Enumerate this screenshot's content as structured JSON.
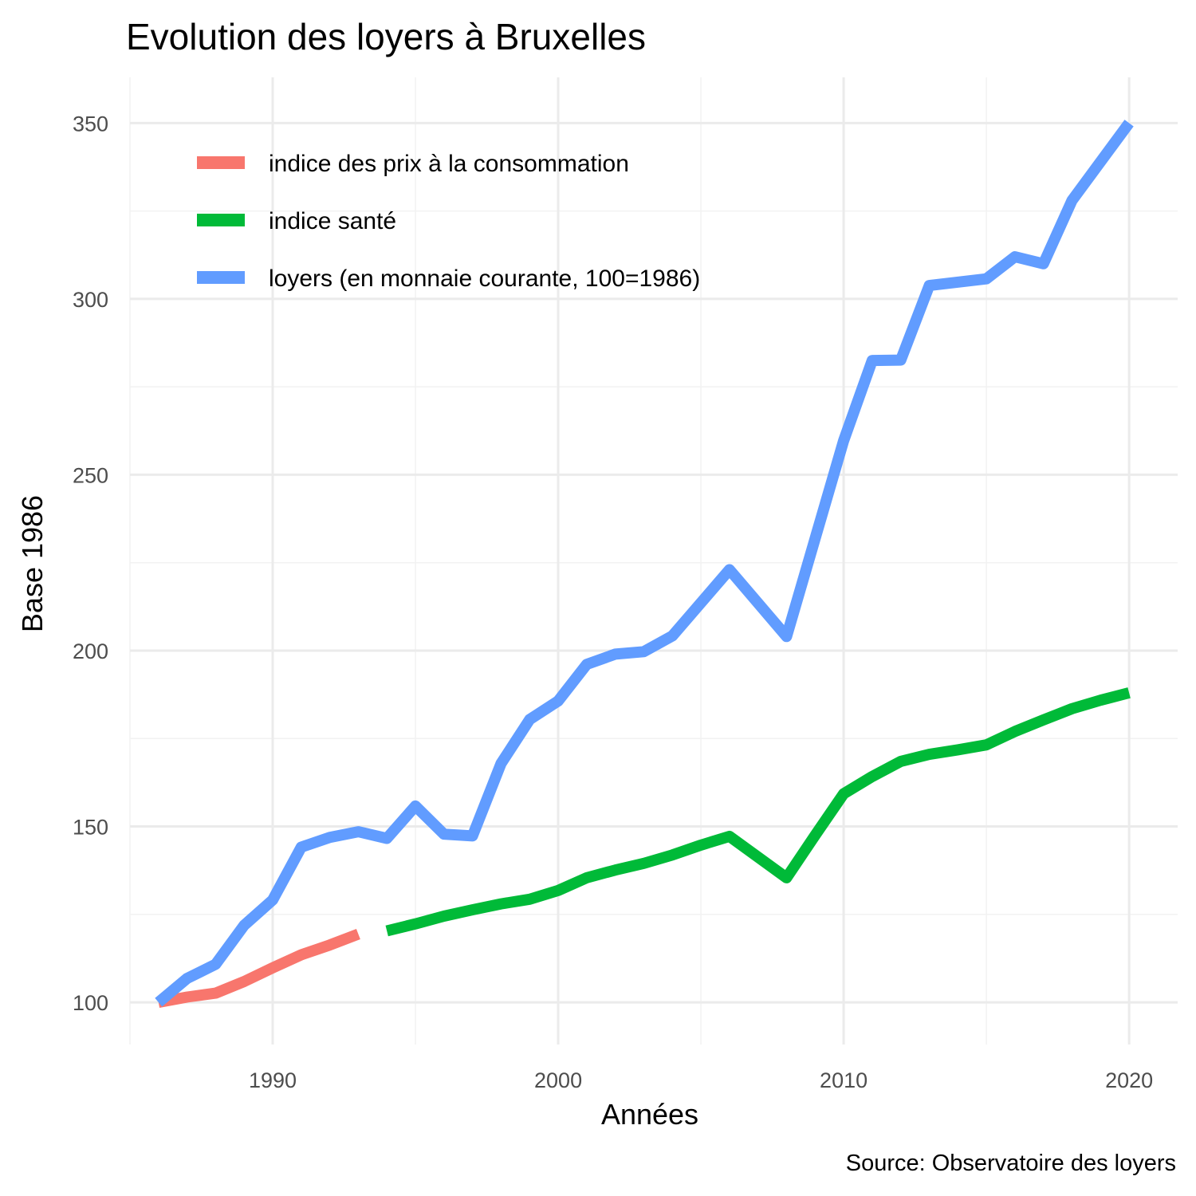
{
  "chart_data": {
    "type": "line",
    "title": "Evolution des loyers à Bruxelles",
    "xlabel": "Années",
    "ylabel": "Base 1986",
    "caption": "Source: Observatoire des loyers",
    "xlim": [
      1985,
      2021.7
    ],
    "ylim": [
      88,
      363
    ],
    "x_ticks": [
      1990,
      2000,
      2010,
      2020
    ],
    "x_tick_labels": [
      "1990",
      "2000",
      "2010",
      "2020"
    ],
    "y_ticks": [
      100,
      150,
      200,
      250,
      300,
      350
    ],
    "y_tick_labels": [
      "100",
      "150",
      "200",
      "250",
      "300",
      "350"
    ],
    "grid": true,
    "legend_position": "top-left",
    "series": [
      {
        "name": "indice des prix à la consommation",
        "color": "#F8766D",
        "x": [
          1986,
          1987,
          1988,
          1989,
          1990,
          1991,
          1992,
          1993
        ],
        "values": [
          100,
          101.5,
          102.6,
          105.9,
          109.8,
          113.5,
          116.3,
          119.4
        ]
      },
      {
        "name": "indice santé",
        "color": "#00BA38",
        "x": [
          1994,
          1995,
          1996,
          1997,
          1998,
          1999,
          2000,
          2001,
          2002,
          2003,
          2004,
          2005,
          2006,
          2007,
          2008,
          2009,
          2010,
          2011,
          2012,
          2013,
          2014,
          2015,
          2016,
          2017,
          2018,
          2019,
          2020
        ],
        "values": [
          120.3,
          122.3,
          124.5,
          126.3,
          128.0,
          129.3,
          131.8,
          135.4,
          137.6,
          139.5,
          141.9,
          144.7,
          147.2,
          141.3,
          135.4,
          147.5,
          159.3,
          164.2,
          168.5,
          170.5,
          171.8,
          173.2,
          177.0,
          180.3,
          183.5,
          185.9,
          188.0
        ]
      },
      {
        "name": "loyers (en monnaie courante, 100=1986)",
        "color": "#619CFF",
        "x": [
          1986,
          1987,
          1988,
          1989,
          1990,
          1991,
          1992,
          1993,
          1994,
          1995,
          1996,
          1997,
          1998,
          1999,
          2000,
          2001,
          2002,
          2003,
          2004,
          2006,
          2008,
          2010,
          2011,
          2012,
          2013,
          2015,
          2016,
          2017,
          2018,
          2020
        ],
        "values": [
          100,
          106.8,
          110.8,
          121.9,
          129.1,
          144.1,
          146.9,
          148.5,
          146.6,
          155.8,
          147.8,
          147.3,
          167.9,
          180.4,
          185.7,
          196.1,
          199.0,
          199.7,
          204.2,
          223.0,
          204.0,
          259.7,
          282.5,
          282.6,
          303.8,
          305.7,
          312.0,
          310.0,
          328.0,
          350.0
        ]
      }
    ]
  }
}
